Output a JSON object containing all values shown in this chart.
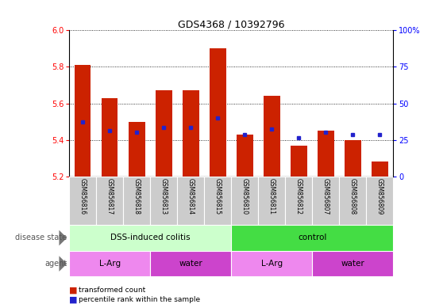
{
  "title": "GDS4368 / 10392796",
  "samples": [
    "GSM856816",
    "GSM856817",
    "GSM856818",
    "GSM856813",
    "GSM856814",
    "GSM856815",
    "GSM856810",
    "GSM856811",
    "GSM856812",
    "GSM856807",
    "GSM856808",
    "GSM856809"
  ],
  "bar_values": [
    5.81,
    5.63,
    5.5,
    5.67,
    5.67,
    5.9,
    5.43,
    5.64,
    5.37,
    5.45,
    5.4,
    5.28
  ],
  "percentile_values": [
    5.5,
    5.45,
    5.44,
    5.47,
    5.47,
    5.52,
    5.43,
    5.46,
    5.41,
    5.44,
    5.43,
    5.43
  ],
  "bar_color": "#cc2200",
  "percentile_color": "#2222cc",
  "ylim_left": [
    5.2,
    6.0
  ],
  "yticks_left": [
    5.2,
    5.4,
    5.6,
    5.8,
    6.0
  ],
  "ylim_right": [
    0,
    100
  ],
  "yticks_right": [
    0,
    25,
    50,
    75,
    100
  ],
  "yticklabels_right": [
    "0",
    "25",
    "50",
    "75",
    "100%"
  ],
  "disease_state_groups": [
    {
      "label": "DSS-induced colitis",
      "start": 0,
      "end": 6,
      "color": "#ccffcc"
    },
    {
      "label": "control",
      "start": 6,
      "end": 12,
      "color": "#44dd44"
    }
  ],
  "agent_groups": [
    {
      "label": "L-Arg",
      "start": 0,
      "end": 3,
      "color": "#ee88ee"
    },
    {
      "label": "water",
      "start": 3,
      "end": 6,
      "color": "#cc44cc"
    },
    {
      "label": "L-Arg",
      "start": 6,
      "end": 9,
      "color": "#ee88ee"
    },
    {
      "label": "water",
      "start": 9,
      "end": 12,
      "color": "#cc44cc"
    }
  ],
  "sample_bg_color": "#cccccc",
  "left_label_color": "#555555",
  "arrow_color": "#777777"
}
